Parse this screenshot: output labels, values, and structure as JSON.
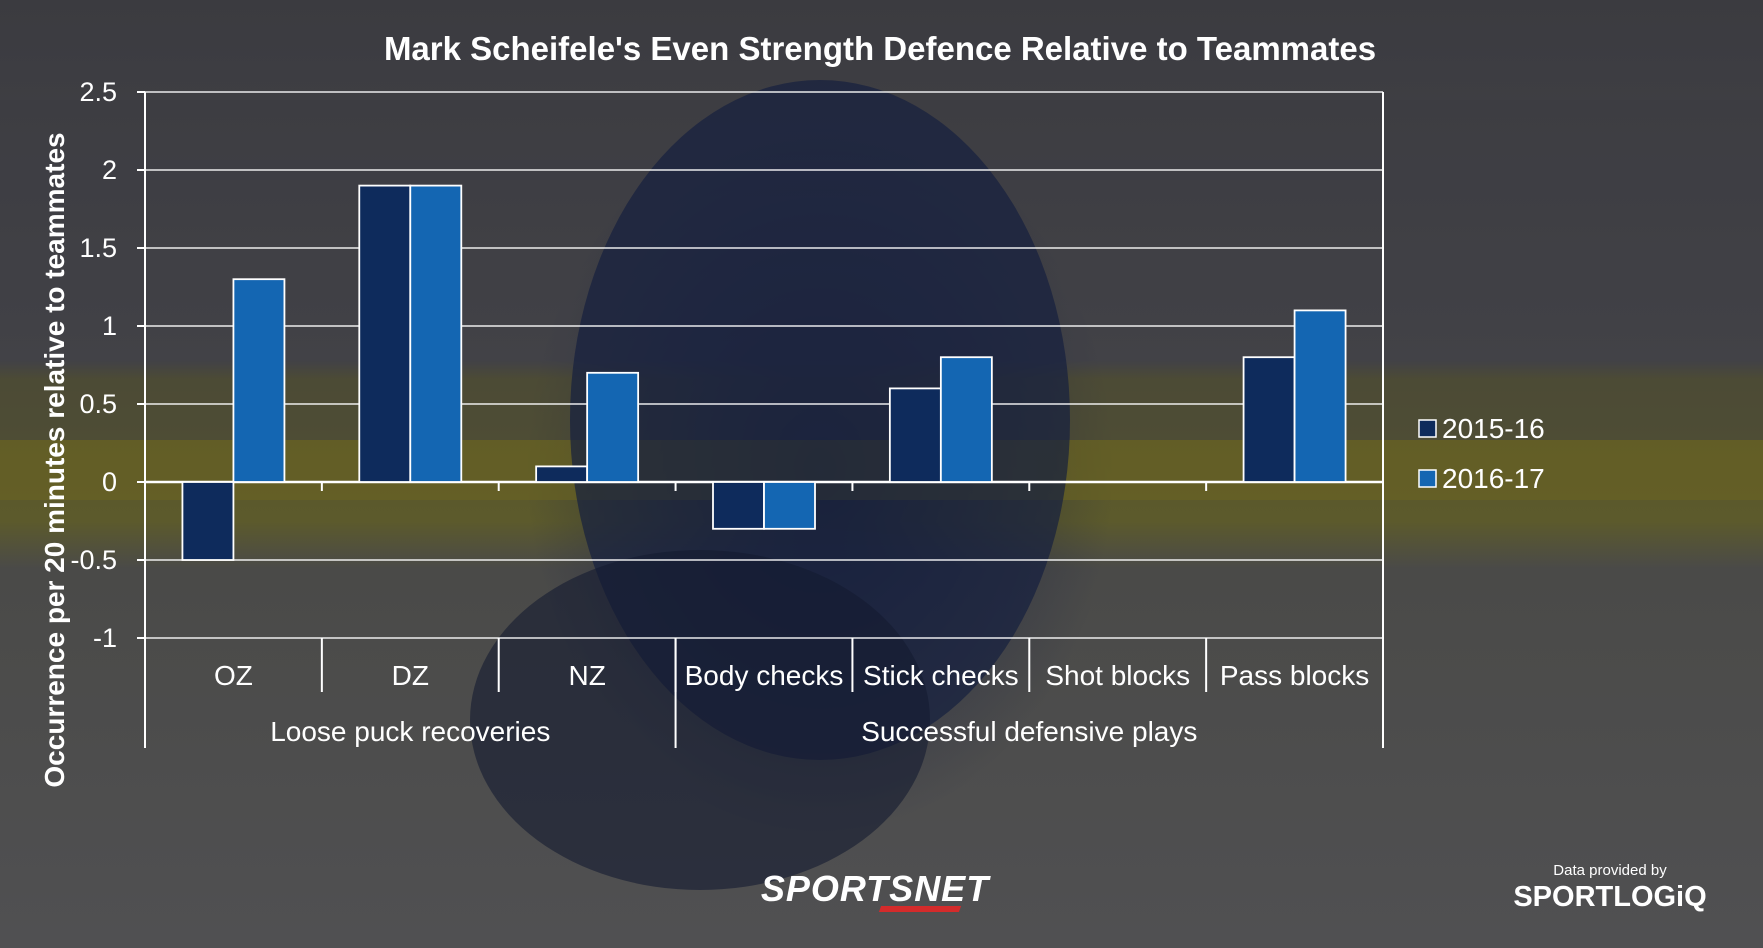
{
  "chart_data": {
    "type": "bar",
    "title": "Mark Scheifele's Even Strength Defence Relative to Teammates",
    "ylabel": "Occurrence per 20 minutes relative to teammates",
    "ylim": [
      -1,
      2.5
    ],
    "yticks": [
      "2.5",
      "2",
      "1.5",
      "1",
      "0.5",
      "0",
      "-0.5",
      "-1"
    ],
    "ytick_values": [
      2.5,
      2,
      1.5,
      1,
      0.5,
      0,
      -0.5,
      -1
    ],
    "categories": [
      "OZ",
      "DZ",
      "NZ",
      "Body checks",
      "Stick checks",
      "Shot blocks",
      "Pass blocks"
    ],
    "groups": [
      {
        "label": "Loose puck recoveries",
        "span": 3
      },
      {
        "label": "Successful defensive plays",
        "span": 4
      }
    ],
    "series": [
      {
        "name": "2015-16",
        "color": "#0e2b5c",
        "values": [
          -0.5,
          1.9,
          0.1,
          -0.3,
          0.6,
          0,
          0.8
        ]
      },
      {
        "name": "2016-17",
        "color": "#1466b2",
        "values": [
          1.3,
          1.9,
          0.7,
          -0.3,
          0.8,
          0,
          1.1
        ]
      }
    ],
    "grid": true,
    "legend": "right"
  },
  "branding": {
    "publisher": "SPORTSNET",
    "provider_caption": "Data provided by",
    "provider": "SPORTLOGiQ"
  }
}
